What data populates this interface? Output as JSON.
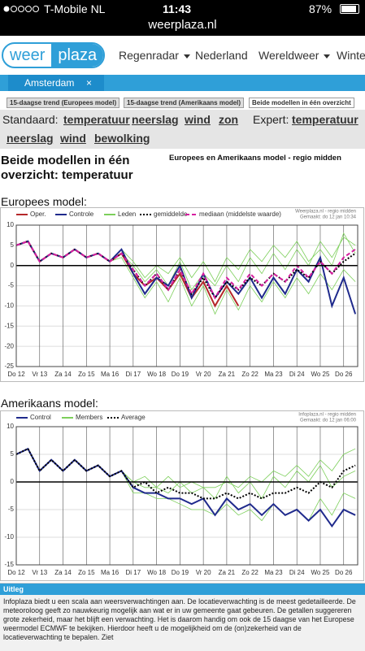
{
  "status_bar": {
    "carrier": "T-Mobile NL",
    "time": "11:43",
    "battery": "87%"
  },
  "url": "weerplaza.nl",
  "nav": {
    "logo_left": "weer",
    "logo_right": "plaza",
    "items": [
      "Regenradar",
      "Nederland",
      "Wereldweer",
      "Winter"
    ]
  },
  "location": "Amsterdam",
  "tabs": [
    "15-daagse trend (Europees model)",
    "15-daagse trend (Amerikaans model)",
    "Beide modellen in één overzicht"
  ],
  "links": {
    "standard_label": "Standaard:",
    "standard": [
      "temperatuur",
      "neerslag",
      "wind",
      "zon"
    ],
    "expert_label": "Expert:",
    "expert": [
      "temperatuur"
    ],
    "row2": [
      "neerslag",
      "wind",
      "bewolking"
    ]
  },
  "heading": {
    "title": "Beide modellen in één overzicht: temperatuur",
    "subtitle": "Europees en Amerikaans model - regio midden"
  },
  "uitleg": {
    "title": "Uitleg",
    "text": "Infoplaza biedt u een scala aan weersverwachtingen aan. De locatieverwachting is de meest gedetailleerde. De meteoroloog geeft zo nauwkeurig mogelijk aan wat er in uw gemeente gaat gebeuren. De getallen suggereren grote zekerheid, maar het blijft een verwachting. Het is daarom handig om ook de 15 daagse van het Europese weermodel ECMWF te bekijken. Hierdoor heeft u de mogelijkheid om de (on)zekerheid van de locatieverwachting te bepalen. Ziet"
  },
  "chart_data": [
    {
      "type": "line",
      "title": "Europees model:",
      "annotations": [
        "Weerplaza.nl - regio midden",
        "Gemaakt: do 12 jan 10:34"
      ],
      "x": [
        0,
        0.5,
        1,
        1.5,
        2,
        2.5,
        3,
        3.5,
        4,
        4.5,
        5,
        5.5,
        6,
        6.5,
        7,
        7.5,
        8,
        8.5,
        9,
        9.5,
        10,
        10.5,
        11,
        11.5,
        12,
        12.5,
        13,
        13.5,
        14,
        14.5
      ],
      "xlim": [
        0,
        14.6
      ],
      "xticks": [
        {
          "value": 0,
          "label": "Do 12"
        },
        {
          "value": 1,
          "label": "Vr 13"
        },
        {
          "value": 2,
          "label": "Za 14"
        },
        {
          "value": 3,
          "label": "Zo 15"
        },
        {
          "value": 4,
          "label": "Ma 16"
        },
        {
          "value": 5,
          "label": "Di 17"
        },
        {
          "value": 6,
          "label": "Wo 18"
        },
        {
          "value": 7,
          "label": "Do 19"
        },
        {
          "value": 8,
          "label": "Vr 20"
        },
        {
          "value": 9,
          "label": "Za 21"
        },
        {
          "value": 10,
          "label": "Zo 22"
        },
        {
          "value": 11,
          "label": "Ma 23"
        },
        {
          "value": 12,
          "label": "Di 24"
        },
        {
          "value": 13,
          "label": "Wo 25"
        },
        {
          "value": 14,
          "label": "Do 26"
        }
      ],
      "ylim": [
        -25,
        10
      ],
      "yticks": [
        -25,
        -20,
        -15,
        -10,
        -5,
        0,
        5,
        10
      ],
      "grid": true,
      "series": [
        {
          "name": "Oper.",
          "color": "#b5282a",
          "values": [
            5,
            6,
            1,
            3,
            2,
            4,
            2,
            3,
            1,
            3,
            -2,
            -5,
            -3,
            -6,
            -2,
            -8,
            -4,
            -10,
            -5,
            -10,
            null,
            null,
            null,
            null,
            null,
            null,
            null,
            null,
            null,
            null
          ]
        },
        {
          "name": "Controle",
          "color": "#1f2a8c",
          "values": [
            5,
            6,
            1,
            3,
            2,
            4,
            2,
            3,
            1,
            4,
            -2,
            -7,
            -3,
            -5,
            0,
            -8,
            -2,
            -8,
            -4,
            -7,
            -3,
            -8,
            -3,
            -7,
            -1,
            -4,
            2,
            -10,
            -3,
            -12
          ]
        },
        {
          "name": "Leden",
          "color": "#7ccf5a",
          "members": [
            [
              5,
              6,
              1,
              3,
              2,
              4,
              2,
              3,
              1,
              3,
              0,
              -4,
              -1,
              -5,
              1,
              -6,
              -2,
              -5,
              0,
              -4,
              2,
              -2,
              3,
              -1,
              4,
              0,
              6,
              2,
              7,
              5
            ],
            [
              5,
              6,
              1,
              3,
              2,
              4,
              2,
              3,
              1,
              2,
              -3,
              -8,
              -4,
              -9,
              -3,
              -10,
              -5,
              -12,
              -6,
              -11,
              -5,
              -9,
              -4,
              -8,
              -3,
              -7,
              -2,
              -6,
              -1,
              -4
            ],
            [
              5,
              6,
              1,
              3,
              2,
              4,
              2,
              3,
              1,
              4,
              1,
              -3,
              0,
              -2,
              2,
              -3,
              1,
              -4,
              2,
              -1,
              4,
              1,
              5,
              2,
              6,
              1,
              4,
              0,
              8,
              3
            ]
          ]
        },
        {
          "name": "gemiddelde",
          "color": "#000000",
          "dash": "2 2",
          "values": [
            5,
            6,
            1,
            3,
            2,
            4,
            2,
            3,
            1,
            3,
            -1,
            -5,
            -2,
            -6,
            -1,
            -7,
            -3,
            -8,
            -4,
            -6,
            -3,
            -5,
            -2,
            -4,
            -1,
            -3,
            1,
            -2,
            1,
            3
          ]
        },
        {
          "name": "mediaan (middelste waarde)",
          "color": "#d61fa0",
          "dash": "5 3",
          "values": [
            5,
            6,
            1,
            3,
            2,
            4,
            2,
            3,
            1,
            3,
            -1,
            -5,
            -2,
            -6,
            -1,
            -7,
            -2,
            -8,
            -3,
            -6,
            -2,
            -5,
            -2,
            -4,
            0,
            -3,
            1,
            -2,
            2,
            4
          ]
        }
      ]
    },
    {
      "type": "line",
      "title": "Amerikaans model:",
      "annotations": [
        "Infoplaza.nl - regio midden",
        "Gemaakt: do 12 jan 06:00"
      ],
      "x": [
        0,
        0.5,
        1,
        1.5,
        2,
        2.5,
        3,
        3.5,
        4,
        4.5,
        5,
        5.5,
        6,
        6.5,
        7,
        7.5,
        8,
        8.5,
        9,
        9.5,
        10,
        10.5,
        11,
        11.5,
        12,
        12.5,
        13,
        13.5,
        14,
        14.5
      ],
      "xlim": [
        0,
        14.6
      ],
      "xticks": [
        {
          "value": 0,
          "label": "Do 12"
        },
        {
          "value": 1,
          "label": "Vr 13"
        },
        {
          "value": 2,
          "label": "Za 14"
        },
        {
          "value": 3,
          "label": "Zo 15"
        },
        {
          "value": 4,
          "label": "Ma 16"
        },
        {
          "value": 5,
          "label": "Di 17"
        },
        {
          "value": 6,
          "label": "Wo 18"
        },
        {
          "value": 7,
          "label": "Do 19"
        },
        {
          "value": 8,
          "label": "Vr 20"
        },
        {
          "value": 9,
          "label": "Za 21"
        },
        {
          "value": 10,
          "label": "Zo 22"
        },
        {
          "value": 11,
          "label": "Ma 23"
        },
        {
          "value": 12,
          "label": "Di 24"
        },
        {
          "value": 13,
          "label": "Wo 25"
        },
        {
          "value": 14,
          "label": "Do 26"
        }
      ],
      "ylim": [
        -15,
        10
      ],
      "yticks": [
        -15,
        -10,
        -5,
        0,
        5,
        10
      ],
      "grid": true,
      "series": [
        {
          "name": "Control",
          "color": "#1f2a8c",
          "values": [
            5,
            6,
            2,
            4,
            2,
            4,
            2,
            3,
            1,
            2,
            -1,
            -2,
            -2,
            -3,
            -3,
            -4,
            -3,
            -6,
            -3,
            -5,
            -4,
            -6,
            -4,
            -6,
            -5,
            -7,
            -5,
            -8,
            -5,
            -6
          ]
        },
        {
          "name": "Members",
          "color": "#7ccf5a",
          "members": [
            [
              5,
              6,
              2,
              4,
              2,
              4,
              2,
              3,
              1,
              2,
              0,
              1,
              -1,
              1,
              -1,
              0,
              -1,
              -1,
              0,
              -1,
              1,
              0,
              2,
              1,
              3,
              1,
              4,
              2,
              5,
              6
            ],
            [
              5,
              6,
              2,
              4,
              2,
              4,
              2,
              3,
              1,
              2,
              -2,
              -2,
              -3,
              -3,
              -4,
              -5,
              -5,
              -6,
              -4,
              -6,
              -5,
              -7,
              -4,
              -6,
              -5,
              -7,
              -3,
              -6,
              -2,
              -3
            ],
            [
              5,
              6,
              2,
              4,
              2,
              4,
              2,
              3,
              1,
              2,
              0,
              -1,
              -1,
              -2,
              0,
              -2,
              -1,
              -3,
              1,
              -2,
              0,
              -3,
              1,
              -1,
              2,
              0,
              3,
              -1,
              1,
              2
            ]
          ]
        },
        {
          "name": "Average",
          "color": "#000000",
          "dash": "2 2",
          "values": [
            5,
            6,
            2,
            4,
            2,
            4,
            2,
            3,
            1,
            2,
            -1,
            0,
            -2,
            -1,
            -2,
            -2,
            -3,
            -3,
            -2,
            -3,
            -2,
            -3,
            -2,
            -2,
            -1,
            -2,
            0,
            -1,
            2,
            3
          ]
        }
      ]
    }
  ]
}
